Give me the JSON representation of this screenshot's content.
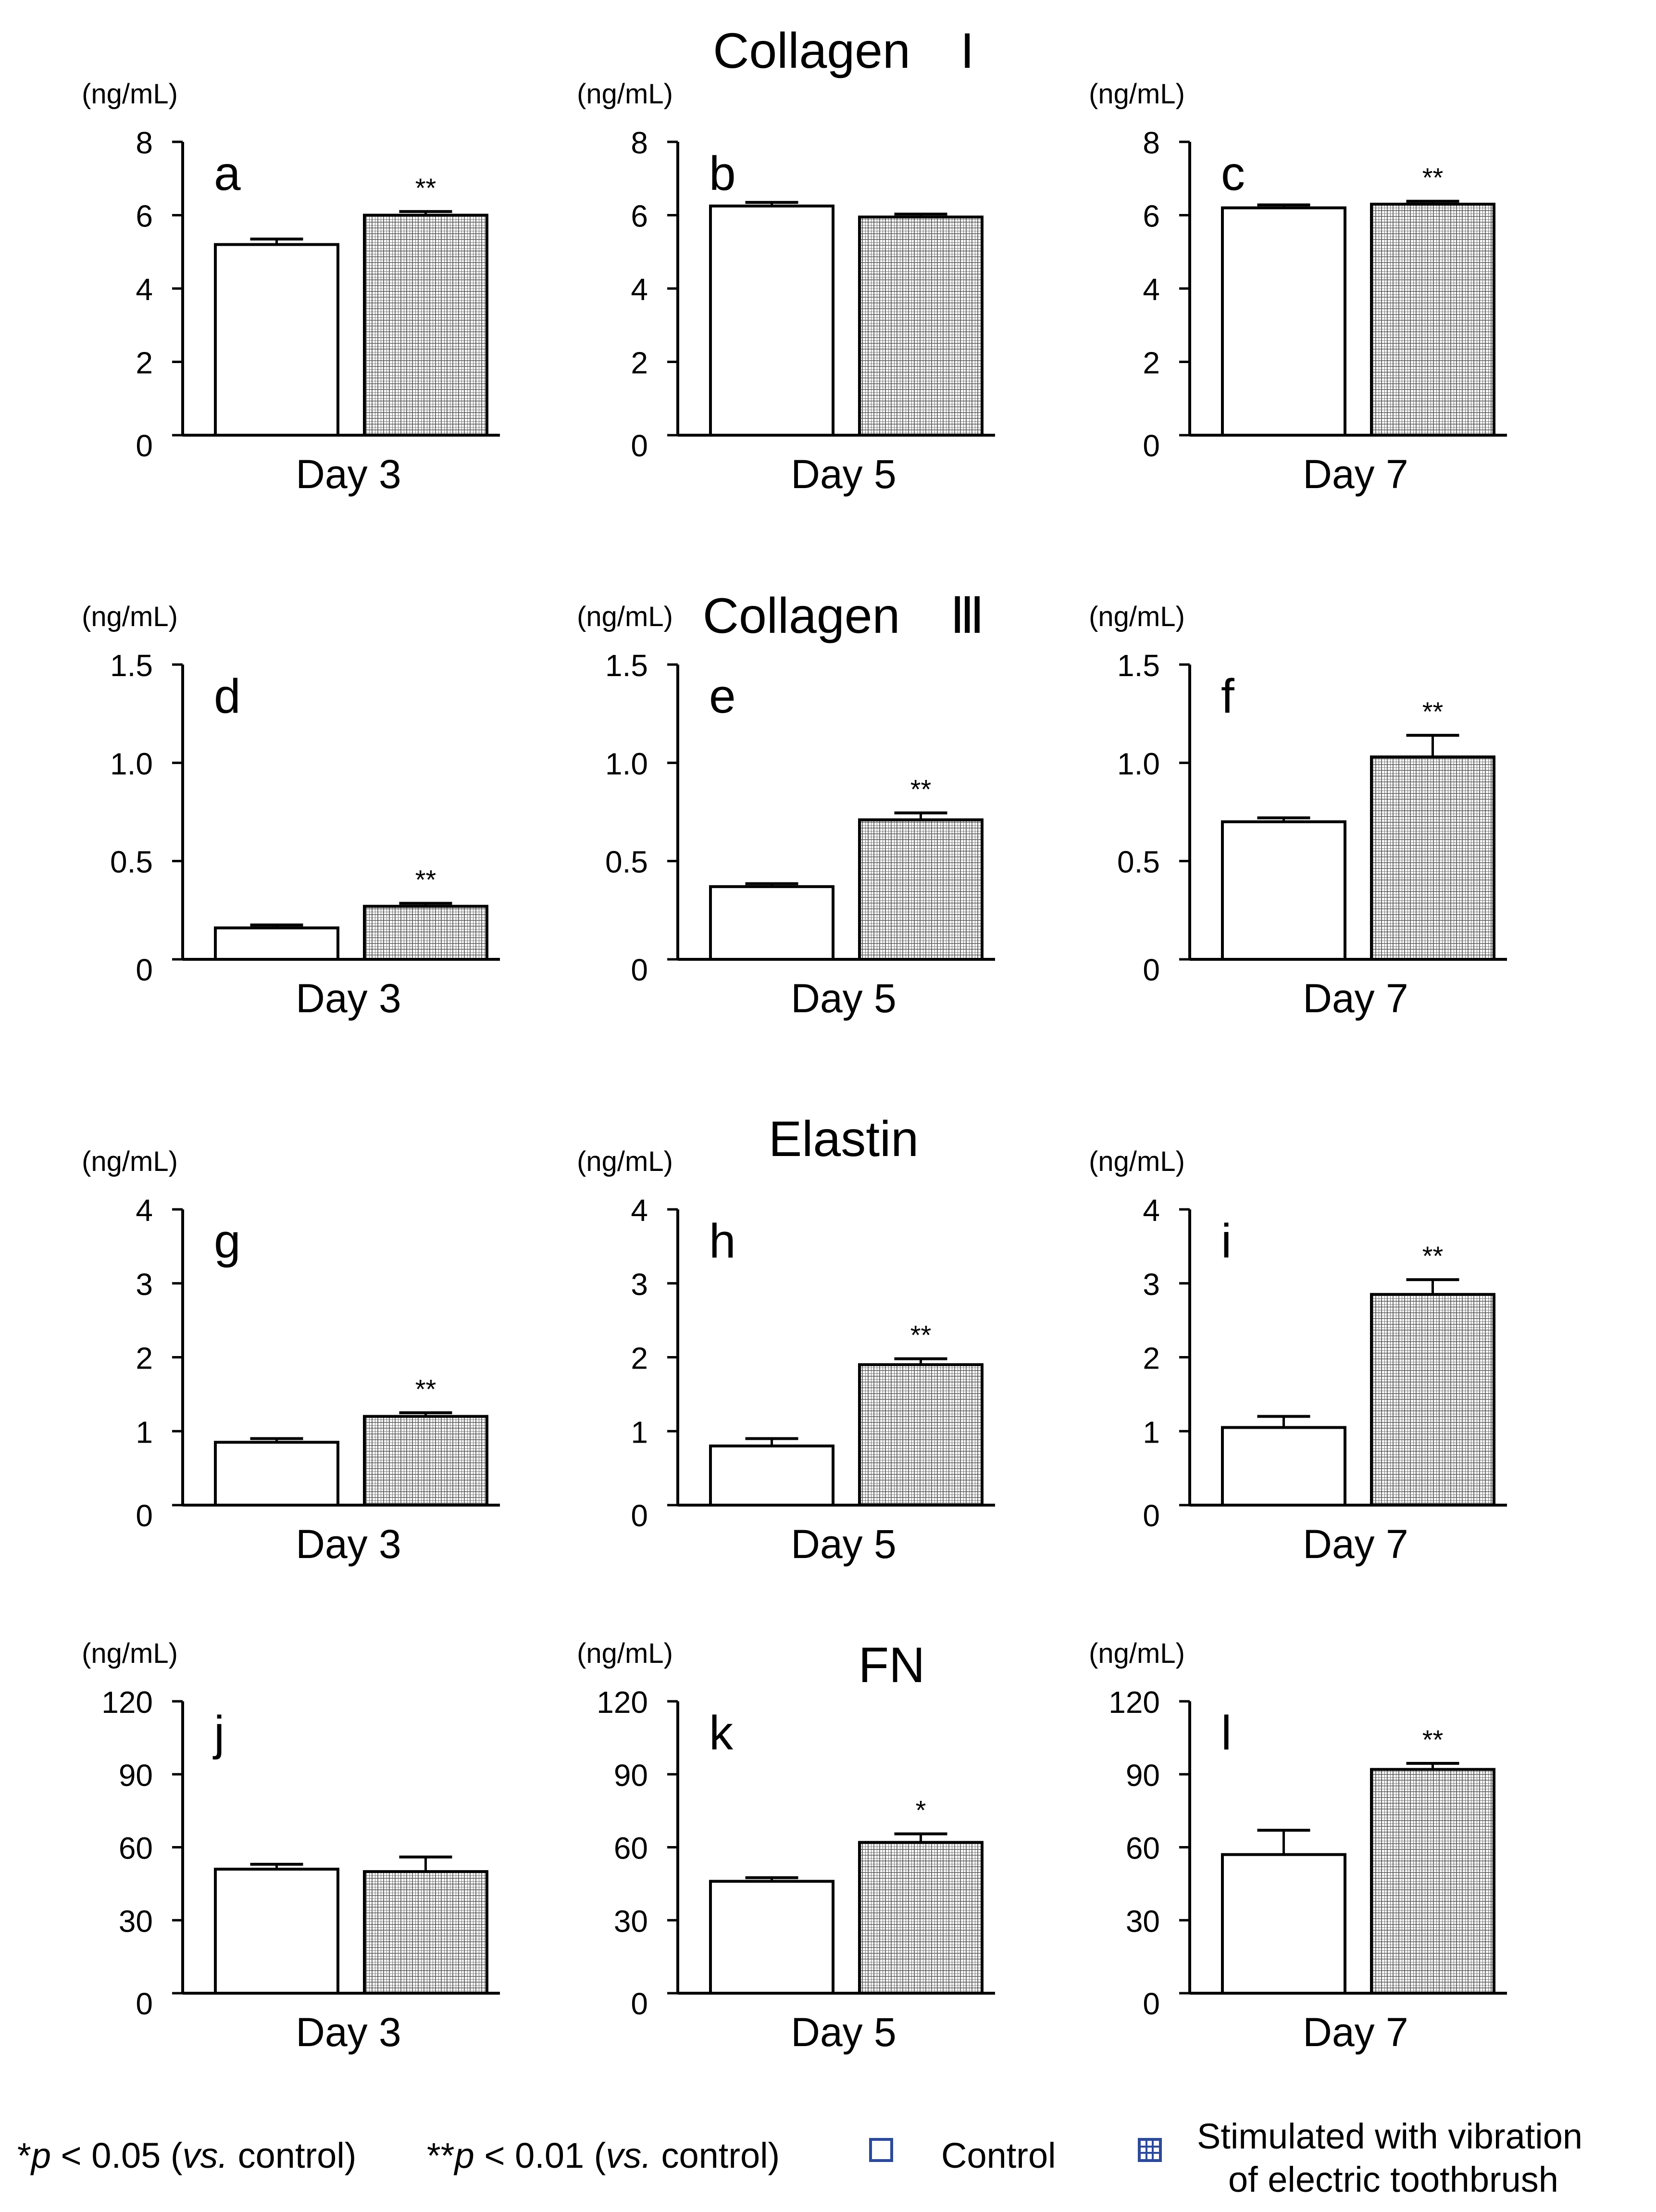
{
  "sections": [
    {
      "title": "Collagen　I"
    },
    {
      "title": "Collagen　Ⅲ"
    },
    {
      "title": "Elastin"
    },
    {
      "title": "FN"
    }
  ],
  "chart_data": [
    {
      "type": "bar",
      "panel_letter": "a",
      "title": "",
      "unit_label": "(ng/mL)",
      "xlabel": "Day 3",
      "categories": [
        "Control",
        "Stimulated with vibration of electric toothbrush"
      ],
      "values": [
        5.2,
        6.0
      ],
      "errors": [
        0.15,
        0.1
      ],
      "significance": [
        "",
        "**"
      ],
      "ylim": [
        0,
        8
      ],
      "yticks": [
        0,
        2,
        4,
        6,
        8
      ],
      "ytick_labels": [
        "0",
        "2",
        "4",
        "6",
        "8"
      ]
    },
    {
      "type": "bar",
      "panel_letter": "b",
      "title": "",
      "unit_label": "(ng/mL)",
      "xlabel": "Day 5",
      "categories": [
        "Control",
        "Stimulated with vibration of electric toothbrush"
      ],
      "values": [
        6.25,
        5.95
      ],
      "errors": [
        0.1,
        0.08
      ],
      "significance": [
        "",
        ""
      ],
      "ylim": [
        0,
        8
      ],
      "yticks": [
        0,
        2,
        4,
        6,
        8
      ],
      "ytick_labels": [
        "0",
        "2",
        "4",
        "6",
        "8"
      ]
    },
    {
      "type": "bar",
      "panel_letter": "c",
      "title": "",
      "unit_label": "(ng/mL)",
      "xlabel": "Day 7",
      "categories": [
        "Control",
        "Stimulated with vibration of electric toothbrush"
      ],
      "values": [
        6.2,
        6.3
      ],
      "errors": [
        0.08,
        0.08
      ],
      "significance": [
        "",
        "**"
      ],
      "ylim": [
        0,
        8
      ],
      "yticks": [
        0,
        2,
        4,
        6,
        8
      ],
      "ytick_labels": [
        "0",
        "2",
        "4",
        "6",
        "8"
      ]
    },
    {
      "type": "bar",
      "panel_letter": "d",
      "title": "",
      "unit_label": "(ng/mL)",
      "xlabel": "Day 3",
      "categories": [
        "Control",
        "Stimulated with vibration of electric toothbrush"
      ],
      "values": [
        0.16,
        0.27
      ],
      "errors": [
        0.015,
        0.015
      ],
      "significance": [
        "",
        "**"
      ],
      "ylim": [
        0,
        1.5
      ],
      "yticks": [
        0,
        0.5,
        1.0,
        1.5
      ],
      "ytick_labels": [
        "0",
        "0.5",
        "1.0",
        "1.5"
      ]
    },
    {
      "type": "bar",
      "panel_letter": "e",
      "title": "",
      "unit_label": "(ng/mL)",
      "xlabel": "Day 5",
      "categories": [
        "Control",
        "Stimulated with vibration of electric toothbrush"
      ],
      "values": [
        0.37,
        0.71
      ],
      "errors": [
        0.015,
        0.035
      ],
      "significance": [
        "",
        "**"
      ],
      "ylim": [
        0,
        1.5
      ],
      "yticks": [
        0,
        0.5,
        1.0,
        1.5
      ],
      "ytick_labels": [
        "0",
        "0.5",
        "1.0",
        "1.5"
      ]
    },
    {
      "type": "bar",
      "panel_letter": "f",
      "title": "",
      "unit_label": "(ng/mL)",
      "xlabel": "Day 7",
      "categories": [
        "Control",
        "Stimulated with vibration of electric toothbrush"
      ],
      "values": [
        0.7,
        1.03
      ],
      "errors": [
        0.02,
        0.11
      ],
      "significance": [
        "",
        "**"
      ],
      "ylim": [
        0,
        1.5
      ],
      "yticks": [
        0,
        0.5,
        1.0,
        1.5
      ],
      "ytick_labels": [
        "0",
        "0.5",
        "1.0",
        "1.5"
      ]
    },
    {
      "type": "bar",
      "panel_letter": "g",
      "title": "",
      "unit_label": "(ng/mL)",
      "xlabel": "Day 3",
      "categories": [
        "Control",
        "Stimulated with vibration of electric toothbrush"
      ],
      "values": [
        0.85,
        1.2
      ],
      "errors": [
        0.05,
        0.05
      ],
      "significance": [
        "",
        "**"
      ],
      "ylim": [
        0,
        4
      ],
      "yticks": [
        0,
        1,
        2,
        3,
        4
      ],
      "ytick_labels": [
        "0",
        "1",
        "2",
        "3",
        "4"
      ]
    },
    {
      "type": "bar",
      "panel_letter": "h",
      "title": "",
      "unit_label": "(ng/mL)",
      "xlabel": "Day 5",
      "categories": [
        "Control",
        "Stimulated with vibration of electric toothbrush"
      ],
      "values": [
        0.8,
        1.9
      ],
      "errors": [
        0.1,
        0.08
      ],
      "significance": [
        "",
        "**"
      ],
      "ylim": [
        0,
        4
      ],
      "yticks": [
        0,
        1,
        2,
        3,
        4
      ],
      "ytick_labels": [
        "0",
        "1",
        "2",
        "3",
        "4"
      ]
    },
    {
      "type": "bar",
      "panel_letter": "i",
      "title": "",
      "unit_label": "(ng/mL)",
      "xlabel": "Day 7",
      "categories": [
        "Control",
        "Stimulated with vibration of electric toothbrush"
      ],
      "values": [
        1.05,
        2.85
      ],
      "errors": [
        0.15,
        0.2
      ],
      "significance": [
        "",
        "**"
      ],
      "ylim": [
        0,
        4
      ],
      "yticks": [
        0,
        1,
        2,
        3,
        4
      ],
      "ytick_labels": [
        "0",
        "1",
        "2",
        "3",
        "4"
      ]
    },
    {
      "type": "bar",
      "panel_letter": "j",
      "title": "",
      "unit_label": "(ng/mL)",
      "xlabel": "Day 3",
      "categories": [
        "Control",
        "Stimulated with vibration of electric toothbrush"
      ],
      "values": [
        51,
        50
      ],
      "errors": [
        2,
        6
      ],
      "significance": [
        "",
        ""
      ],
      "ylim": [
        0,
        120
      ],
      "yticks": [
        0,
        30,
        60,
        90,
        120
      ],
      "ytick_labels": [
        "0",
        "30",
        "60",
        "90",
        "120"
      ]
    },
    {
      "type": "bar",
      "panel_letter": "k",
      "title": "FN",
      "unit_label": "(ng/mL)",
      "xlabel": "Day 5",
      "categories": [
        "Control",
        "Stimulated with vibration of electric toothbrush"
      ],
      "values": [
        46,
        62
      ],
      "errors": [
        1.5,
        3.5
      ],
      "significance": [
        "",
        "*"
      ],
      "ylim": [
        0,
        120
      ],
      "yticks": [
        0,
        30,
        60,
        90,
        120
      ],
      "ytick_labels": [
        "0",
        "30",
        "60",
        "90",
        "120"
      ]
    },
    {
      "type": "bar",
      "panel_letter": "l",
      "title": "",
      "unit_label": "(ng/mL)",
      "xlabel": "Day 7",
      "categories": [
        "Control",
        "Stimulated with vibration of electric toothbrush"
      ],
      "values": [
        57,
        92
      ],
      "errors": [
        10,
        2.5
      ],
      "significance": [
        "",
        "**"
      ],
      "ylim": [
        0,
        120
      ],
      "yticks": [
        0,
        30,
        60,
        90,
        120
      ],
      "ytick_labels": [
        "0",
        "30",
        "60",
        "90",
        "120"
      ]
    }
  ],
  "footnotes": {
    "p05_star": "*",
    "p05_var": "p",
    "p05_rest": " < 0.05 (",
    "p05_vs": "vs.",
    "p05_end": " control)",
    "p01_star": "**",
    "p01_var": "p",
    "p01_rest": " < 0.01 (",
    "p01_vs": "vs.",
    "p01_end": " control)"
  },
  "legend": {
    "control_label": "Control",
    "stim_line1": "Stimulated with vibration",
    "stim_line2": "of electric toothbrush",
    "control_icon": "open-square-icon",
    "stim_icon": "hatched-square-icon"
  },
  "colors": {
    "bar_stroke": "#000000",
    "control_fill": "#ffffff",
    "stim_grid": "#555555",
    "legend_stroke": "#2d4a9a"
  }
}
